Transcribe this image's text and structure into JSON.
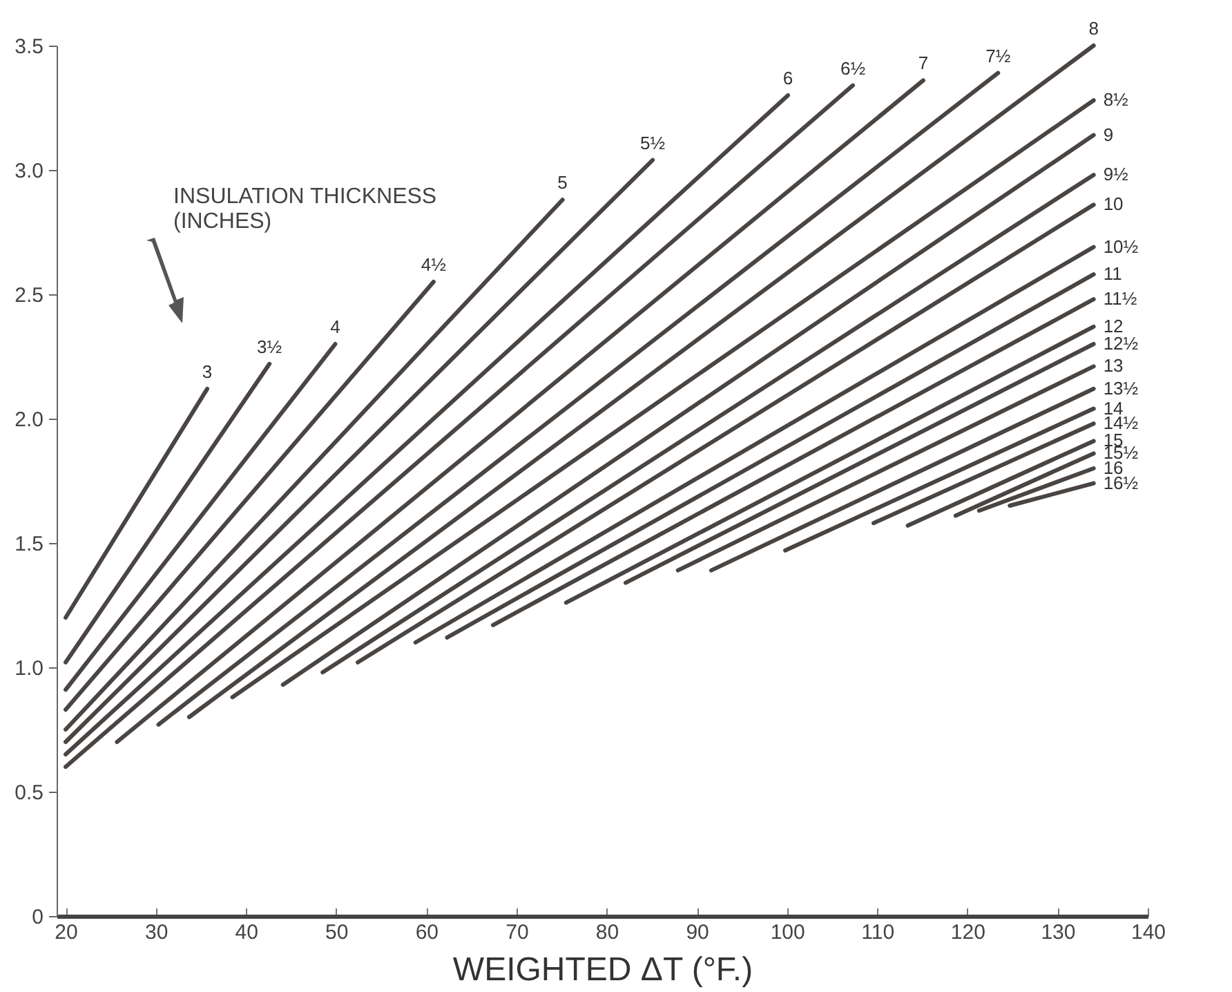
{
  "chart_data": {
    "type": "line",
    "xlabel": "WEIGHTED ΔT (°F.)",
    "annotations": [
      "INSULATION THICKNESS\n(INCHES)"
    ],
    "xlim": [
      19,
      140
    ],
    "xticks": [
      20,
      30,
      40,
      50,
      60,
      70,
      80,
      90,
      100,
      110,
      120,
      130,
      140
    ],
    "ylim": [
      0,
      3.5
    ],
    "yticks": [
      {
        "value": 0,
        "label": "0"
      },
      0.5,
      {
        "value": 1,
        "label": "1.0"
      },
      1.5,
      {
        "value": 2,
        "label": "2.0"
      },
      2.5,
      {
        "value": 3,
        "label": "3.0"
      },
      3.5
    ],
    "grid": false,
    "legend": false,
    "marker": "none",
    "line_style": "solid",
    "series": [
      {
        "name": "3",
        "color": "#4a4542",
        "x": [
          20,
          35.7
        ],
        "values": [
          1.2,
          2.12
        ]
      },
      {
        "name": "3½",
        "color": "#4a4542",
        "x": [
          20,
          42.6
        ],
        "values": [
          1.02,
          2.22
        ]
      },
      {
        "name": "4",
        "color": "#4a4542",
        "x": [
          20,
          49.9
        ],
        "values": [
          0.91,
          2.3
        ]
      },
      {
        "name": "4½",
        "color": "#4a4542",
        "x": [
          20,
          60.8
        ],
        "values": [
          0.83,
          2.55
        ]
      },
      {
        "name": "5",
        "color": "#4a4542",
        "x": [
          20,
          75.1
        ],
        "values": [
          0.75,
          2.88
        ]
      },
      {
        "name": "5½",
        "color": "#4a4542",
        "x": [
          20,
          85.1
        ],
        "values": [
          0.7,
          3.04
        ]
      },
      {
        "name": "6",
        "color": "#4a4542",
        "x": [
          20,
          100.1
        ],
        "values": [
          0.65,
          3.3
        ]
      },
      {
        "name": "6½",
        "color": "#4a4542",
        "x": [
          20,
          107.3
        ],
        "values": [
          0.6,
          3.34
        ]
      },
      {
        "name": "7",
        "color": "#4a4542",
        "x": [
          25.7,
          115.1
        ],
        "values": [
          0.7,
          3.36
        ]
      },
      {
        "name": "7½",
        "color": "#4a4542",
        "x": [
          30.3,
          123.4
        ],
        "values": [
          0.77,
          3.39
        ]
      },
      {
        "name": "8",
        "color": "#4a4542",
        "x": [
          33.7,
          134
        ],
        "values": [
          0.8,
          3.5
        ]
      },
      {
        "name": "8½",
        "color": "#4a4542",
        "x": [
          38.5,
          134
        ],
        "values": [
          0.88,
          3.28
        ]
      },
      {
        "name": "9",
        "color": "#4a4542",
        "x": [
          44.1,
          134
        ],
        "values": [
          0.93,
          3.14
        ]
      },
      {
        "name": "9½",
        "color": "#4a4542",
        "x": [
          48.5,
          134
        ],
        "values": [
          0.98,
          2.98
        ]
      },
      {
        "name": "10",
        "color": "#4a4542",
        "x": [
          52.4,
          134
        ],
        "values": [
          1.02,
          2.86
        ]
      },
      {
        "name": "10½",
        "color": "#4a4542",
        "x": [
          58.8,
          134
        ],
        "values": [
          1.1,
          2.69
        ]
      },
      {
        "name": "11",
        "color": "#4a4542",
        "x": [
          62.3,
          134
        ],
        "values": [
          1.12,
          2.58
        ]
      },
      {
        "name": "11½",
        "color": "#4a4542",
        "x": [
          67.4,
          134
        ],
        "values": [
          1.17,
          2.48
        ]
      },
      {
        "name": "12",
        "color": "#4a4542",
        "x": [
          75.5,
          134
        ],
        "values": [
          1.26,
          2.37
        ]
      },
      {
        "name": "12½",
        "color": "#4a4542",
        "x": [
          82.1,
          134
        ],
        "values": [
          1.34,
          2.3
        ]
      },
      {
        "name": "13",
        "color": "#4a4542",
        "x": [
          87.9,
          134
        ],
        "values": [
          1.39,
          2.21
        ]
      },
      {
        "name": "13½",
        "color": "#4a4542",
        "x": [
          91.6,
          134
        ],
        "values": [
          1.39,
          2.12
        ]
      },
      {
        "name": "14",
        "color": "#4a4542",
        "x": [
          99.8,
          134
        ],
        "values": [
          1.47,
          2.04
        ]
      },
      {
        "name": "14½",
        "color": "#4a4542",
        "x": [
          109.6,
          134
        ],
        "values": [
          1.58,
          1.98
        ]
      },
      {
        "name": "15",
        "color": "#4a4542",
        "x": [
          113.4,
          134
        ],
        "values": [
          1.57,
          1.91
        ]
      },
      {
        "name": "15½",
        "color": "#4a4542",
        "x": [
          118.7,
          134
        ],
        "values": [
          1.61,
          1.86
        ]
      },
      {
        "name": "16",
        "color": "#4a4542",
        "x": [
          121.3,
          134
        ],
        "values": [
          1.63,
          1.8
        ]
      },
      {
        "name": "16½",
        "color": "#4a4542",
        "x": [
          124.7,
          134
        ],
        "values": [
          1.65,
          1.74
        ]
      }
    ]
  }
}
